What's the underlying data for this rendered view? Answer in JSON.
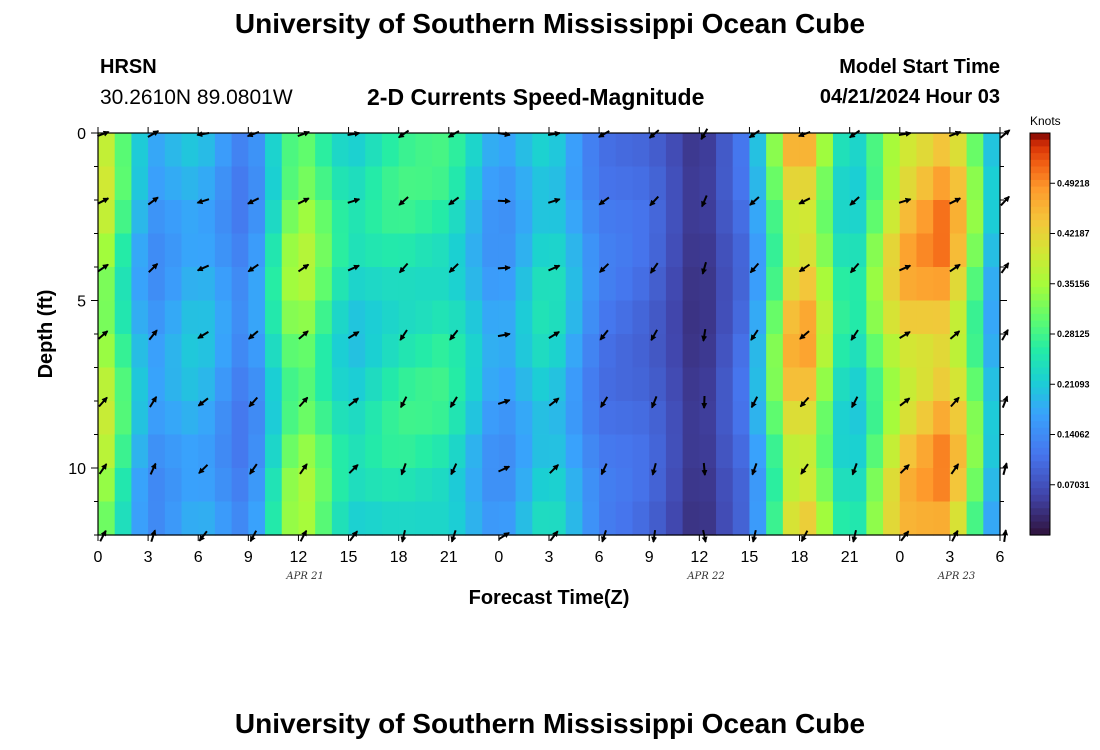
{
  "header": {
    "title": "University of Southern Mississippi Ocean Cube",
    "station": "HRSN",
    "location": "30.2610N  89.0801W",
    "plot_title": "2-D Currents Speed-Magnitude",
    "model_start_label": "Model Start Time",
    "model_start_value": "04/21/2024 Hour 03"
  },
  "footer": {
    "title": "University of Southern Mississippi Ocean Cube"
  },
  "chart_data": {
    "type": "heatmap",
    "title": "2-D Currents Speed-Magnitude",
    "xlabel": "Forecast Time(Z)",
    "ylabel": "Depth (ft)",
    "xlim": [
      0,
      54
    ],
    "ylim": [
      0,
      12
    ],
    "x_ticks": [
      {
        "v": 0,
        "label": "0"
      },
      {
        "v": 3,
        "label": "3"
      },
      {
        "v": 6,
        "label": "6"
      },
      {
        "v": 9,
        "label": "9"
      },
      {
        "v": 12,
        "label": "12"
      },
      {
        "v": 15,
        "label": "15"
      },
      {
        "v": 18,
        "label": "18"
      },
      {
        "v": 21,
        "label": "21"
      },
      {
        "v": 24,
        "label": "0"
      },
      {
        "v": 27,
        "label": "3"
      },
      {
        "v": 30,
        "label": "6"
      },
      {
        "v": 33,
        "label": "9"
      },
      {
        "v": 36,
        "label": "12"
      },
      {
        "v": 39,
        "label": "15"
      },
      {
        "v": 42,
        "label": "18"
      },
      {
        "v": 45,
        "label": "21"
      },
      {
        "v": 48,
        "label": "0"
      },
      {
        "v": 51,
        "label": "3"
      },
      {
        "v": 54,
        "label": "6"
      }
    ],
    "y_ticks": [
      {
        "v": 0,
        "label": "0"
      },
      {
        "v": 5,
        "label": "5"
      },
      {
        "v": 10,
        "label": "10"
      }
    ],
    "date_labels": [
      {
        "x": 12.4,
        "text": "APR 21"
      },
      {
        "x": 36.4,
        "text": "APR 22"
      },
      {
        "x": 51.4,
        "text": "APR 23"
      }
    ],
    "colorbar": {
      "label": "Knots",
      "ticks": [
        "0.49218",
        "0.42187",
        "0.35156",
        "0.28125",
        "0.21093",
        "0.14062",
        "0.07031"
      ],
      "tick_values": [
        0.49218,
        0.42187,
        0.35156,
        0.28125,
        0.21093,
        0.14062,
        0.07031
      ],
      "vmin": 0.0,
      "vmax": 0.5625
    },
    "speed_profile_knots": [
      {
        "t": 0,
        "v": 0.4
      },
      {
        "t": 3,
        "v": 0.15
      },
      {
        "t": 6,
        "v": 0.2
      },
      {
        "t": 9,
        "v": 0.12
      },
      {
        "t": 12,
        "v": 0.36
      },
      {
        "t": 15,
        "v": 0.22
      },
      {
        "t": 18,
        "v": 0.26
      },
      {
        "t": 21,
        "v": 0.26
      },
      {
        "t": 24,
        "v": 0.15
      },
      {
        "t": 27,
        "v": 0.24
      },
      {
        "t": 30,
        "v": 0.12
      },
      {
        "t": 33,
        "v": 0.1
      },
      {
        "t": 36,
        "v": 0.03
      },
      {
        "t": 39,
        "v": 0.12
      },
      {
        "t": 42,
        "v": 0.49
      },
      {
        "t": 45,
        "v": 0.2
      },
      {
        "t": 48,
        "v": 0.43
      },
      {
        "t": 51,
        "v": 0.48
      },
      {
        "t": 54,
        "v": 0.14
      }
    ],
    "arrow_rows_depth_ft": [
      0,
      2,
      4,
      6,
      8,
      10,
      12
    ],
    "arrow_directions_deg": [
      {
        "t": 0,
        "dir": 20
      },
      {
        "t": 3,
        "dir": 30
      },
      {
        "t": 6,
        "dir": 190
      },
      {
        "t": 9,
        "dir": 200
      },
      {
        "t": 12,
        "dir": 20
      },
      {
        "t": 15,
        "dir": 10
      },
      {
        "t": 18,
        "dir": 215
      },
      {
        "t": 21,
        "dir": 210
      },
      {
        "t": 24,
        "dir": 350
      },
      {
        "t": 27,
        "dir": 10
      },
      {
        "t": 30,
        "dir": 210
      },
      {
        "t": 33,
        "dir": 220
      },
      {
        "t": 36,
        "dir": 240
      },
      {
        "t": 39,
        "dir": 215
      },
      {
        "t": 42,
        "dir": 200
      },
      {
        "t": 45,
        "dir": 215
      },
      {
        "t": 48,
        "dir": 10
      },
      {
        "t": 51,
        "dir": 20
      },
      {
        "t": 54,
        "dir": 40
      }
    ]
  }
}
